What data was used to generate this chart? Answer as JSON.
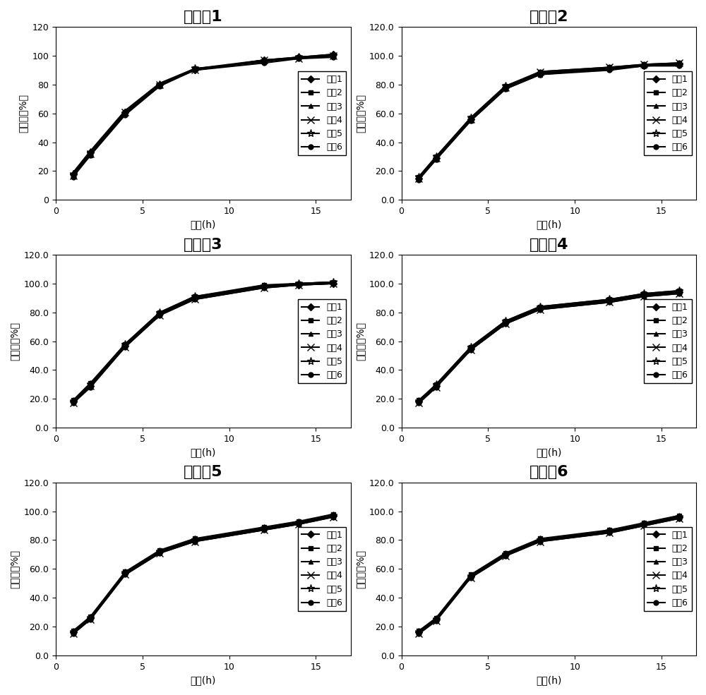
{
  "panels": [
    {
      "title": "实施例1",
      "ylim": [
        0,
        120
      ],
      "yticks": [
        0,
        20,
        40,
        60,
        80,
        100,
        120
      ],
      "ytick_labels": [
        "0",
        "20",
        "40",
        "60",
        "80",
        "100",
        "120"
      ],
      "has_decimal": false,
      "series": [
        [
          18,
          33,
          61,
          80,
          90,
          97,
          99,
          101
        ],
        [
          17,
          31,
          60,
          79,
          91,
          96,
          99,
          100
        ],
        [
          19,
          34,
          62,
          81,
          91,
          97,
          99,
          101
        ],
        [
          17,
          32,
          61,
          80,
          90,
          97,
          98,
          100
        ],
        [
          18,
          33,
          60,
          80,
          91,
          96,
          99,
          100
        ],
        [
          16,
          31,
          59,
          79,
          90,
          95,
          98,
          99
        ]
      ]
    },
    {
      "title": "实施例2",
      "ylim": [
        0,
        120
      ],
      "yticks": [
        0.0,
        20.0,
        40.0,
        60.0,
        80.0,
        100.0,
        120.0
      ],
      "ytick_labels": [
        "0.0",
        "20.0",
        "40.0",
        "60.0",
        "80.0",
        "100.0",
        "120.0"
      ],
      "has_decimal": true,
      "series": [
        [
          15,
          29,
          56,
          78,
          88,
          91,
          93,
          94
        ],
        [
          16,
          30,
          57,
          79,
          89,
          92,
          94,
          95
        ],
        [
          15,
          28,
          55,
          77,
          87,
          91,
          93,
          94
        ],
        [
          15,
          29,
          56,
          78,
          89,
          92,
          94,
          95
        ],
        [
          16,
          30,
          57,
          79,
          88,
          91,
          93,
          94
        ],
        [
          14,
          28,
          55,
          77,
          87,
          90,
          93,
          93
        ]
      ]
    },
    {
      "title": "实施例3",
      "ylim": [
        0,
        120
      ],
      "yticks": [
        0.0,
        20.0,
        40.0,
        60.0,
        80.0,
        100.0,
        120.0
      ],
      "ytick_labels": [
        "0.0",
        "20.0",
        "40.0",
        "60.0",
        "80.0",
        "100.0",
        "120.0"
      ],
      "has_decimal": true,
      "series": [
        [
          18,
          29,
          57,
          79,
          90,
          98,
          99,
          100
        ],
        [
          19,
          31,
          58,
          80,
          91,
          99,
          100,
          101
        ],
        [
          18,
          30,
          57,
          79,
          90,
          98,
          100,
          101
        ],
        [
          17,
          29,
          56,
          78,
          89,
          97,
          99,
          100
        ],
        [
          18,
          30,
          58,
          80,
          91,
          98,
          100,
          101
        ],
        [
          17,
          28,
          56,
          78,
          89,
          97,
          99,
          100
        ]
      ]
    },
    {
      "title": "实施例4",
      "ylim": [
        0,
        120
      ],
      "yticks": [
        0.0,
        20.0,
        40.0,
        60.0,
        80.0,
        100.0,
        120.0
      ],
      "ytick_labels": [
        "0.0",
        "20.0",
        "40.0",
        "60.0",
        "80.0",
        "100.0",
        "120.0"
      ],
      "has_decimal": true,
      "series": [
        [
          18,
          29,
          55,
          73,
          83,
          88,
          92,
          94
        ],
        [
          19,
          30,
          56,
          74,
          84,
          89,
          93,
          95
        ],
        [
          18,
          29,
          55,
          73,
          83,
          88,
          92,
          94
        ],
        [
          17,
          28,
          54,
          72,
          82,
          87,
          91,
          93
        ],
        [
          18,
          30,
          56,
          74,
          84,
          89,
          93,
          95
        ],
        [
          17,
          28,
          54,
          72,
          82,
          87,
          91,
          93
        ]
      ]
    },
    {
      "title": "实施例5",
      "ylim": [
        0,
        120
      ],
      "yticks": [
        0.0,
        20.0,
        40.0,
        60.0,
        80.0,
        100.0,
        120.0
      ],
      "ytick_labels": [
        "0.0",
        "20.0",
        "40.0",
        "60.0",
        "80.0",
        "100.0",
        "120.0"
      ],
      "has_decimal": true,
      "series": [
        [
          16,
          26,
          57,
          72,
          80,
          88,
          92,
          97
        ],
        [
          17,
          27,
          58,
          73,
          81,
          89,
          93,
          98
        ],
        [
          16,
          26,
          57,
          72,
          80,
          88,
          92,
          97
        ],
        [
          15,
          25,
          56,
          71,
          79,
          87,
          91,
          96
        ],
        [
          16,
          26,
          57,
          72,
          80,
          88,
          92,
          97
        ],
        [
          15,
          25,
          56,
          71,
          79,
          87,
          91,
          96
        ]
      ]
    },
    {
      "title": "实施例6",
      "ylim": [
        0,
        120
      ],
      "yticks": [
        0.0,
        20.0,
        40.0,
        60.0,
        80.0,
        100.0,
        120.0
      ],
      "ytick_labels": [
        "0.0",
        "20.0",
        "40.0",
        "60.0",
        "80.0",
        "100.0",
        "120.0"
      ],
      "has_decimal": true,
      "series": [
        [
          16,
          25,
          55,
          70,
          80,
          86,
          91,
          96
        ],
        [
          17,
          26,
          56,
          71,
          81,
          87,
          92,
          97
        ],
        [
          16,
          25,
          55,
          70,
          80,
          86,
          91,
          96
        ],
        [
          15,
          24,
          54,
          69,
          79,
          85,
          90,
          95
        ],
        [
          16,
          25,
          55,
          70,
          80,
          86,
          91,
          96
        ],
        [
          15,
          24,
          54,
          69,
          79,
          85,
          90,
          95
        ]
      ]
    }
  ],
  "x_timepoints": [
    1,
    2,
    4,
    6,
    8,
    12,
    14,
    16
  ],
  "xlim": [
    0,
    17
  ],
  "xticks": [
    0,
    5,
    10,
    15
  ],
  "xlabel": "时间(h)",
  "ylabel": "释放度（%）",
  "legend_labels": [
    "样哈1",
    "样哈2",
    "样哈3",
    "样哈4",
    "样哈5",
    "样哈6"
  ],
  "markers": [
    "D",
    "s",
    "^",
    "x",
    "*",
    "o"
  ],
  "line_color": "#000000",
  "bg_color": "#ffffff",
  "title_fontsize": 16,
  "label_fontsize": 10,
  "legend_fontsize": 9,
  "tick_fontsize": 9
}
